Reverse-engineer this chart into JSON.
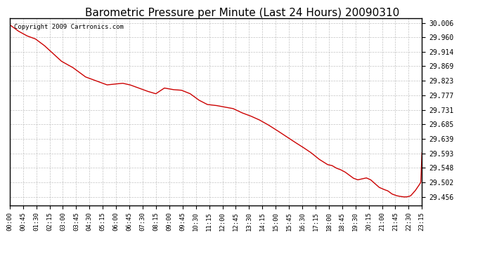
{
  "title": "Barometric Pressure per Minute (Last 24 Hours) 20090310",
  "copyright": "Copyright 2009 Cartronics.com",
  "line_color": "#cc0000",
  "background_color": "#ffffff",
  "plot_background": "#ffffff",
  "grid_color": "#aaaaaa",
  "yticks": [
    29.456,
    29.502,
    29.548,
    29.593,
    29.639,
    29.685,
    29.731,
    29.777,
    29.823,
    29.869,
    29.914,
    29.96,
    30.006
  ],
  "ylim": [
    29.43,
    30.02
  ],
  "xtick_labels": [
    "00:00",
    "00:45",
    "01:30",
    "02:15",
    "03:00",
    "03:45",
    "04:30",
    "05:15",
    "06:00",
    "06:45",
    "07:30",
    "08:15",
    "09:00",
    "09:45",
    "10:30",
    "11:15",
    "12:00",
    "12:45",
    "13:30",
    "14:15",
    "15:00",
    "15:45",
    "16:30",
    "17:15",
    "18:00",
    "18:45",
    "19:30",
    "20:15",
    "21:00",
    "21:45",
    "22:30",
    "23:15"
  ],
  "key_x": [
    0,
    30,
    60,
    90,
    120,
    150,
    180,
    220,
    265,
    310,
    340,
    370,
    395,
    420,
    450,
    480,
    510,
    540,
    570,
    600,
    630,
    660,
    690,
    720,
    750,
    780,
    810,
    840,
    870,
    900,
    930,
    960,
    990,
    1020,
    1050,
    1080,
    1110,
    1125,
    1140,
    1155,
    1170,
    1185,
    1200,
    1215,
    1230,
    1245,
    1260,
    1275,
    1290,
    1305,
    1320,
    1335,
    1350,
    1360,
    1370,
    1375,
    1380,
    1385,
    1390,
    1395,
    1400,
    1405,
    1415,
    1425,
    1435,
    1439
  ],
  "key_y": [
    30.0,
    29.98,
    29.965,
    29.955,
    29.935,
    29.91,
    29.885,
    29.865,
    29.835,
    29.82,
    29.81,
    29.813,
    29.815,
    29.81,
    29.8,
    29.79,
    29.782,
    29.8,
    29.795,
    29.793,
    29.782,
    29.762,
    29.748,
    29.745,
    29.74,
    29.735,
    29.722,
    29.712,
    29.7,
    29.685,
    29.668,
    29.65,
    29.632,
    29.615,
    29.597,
    29.575,
    29.558,
    29.555,
    29.547,
    29.542,
    29.535,
    29.525,
    29.515,
    29.51,
    29.513,
    29.516,
    29.51,
    29.498,
    29.486,
    29.48,
    29.475,
    29.465,
    29.46,
    29.458,
    29.457,
    29.456,
    29.456,
    29.456,
    29.457,
    29.458,
    29.46,
    29.465,
    29.475,
    29.488,
    29.502,
    29.595
  ]
}
